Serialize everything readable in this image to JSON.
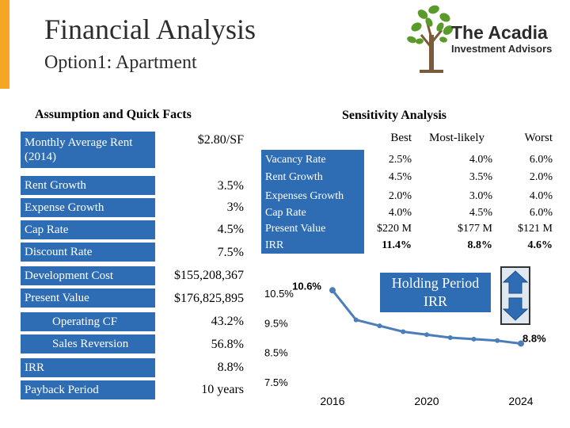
{
  "header": {
    "title": "Financial Analysis",
    "subtitle": "Option1: Apartment"
  },
  "logo": {
    "name": "The Acadia",
    "tagline": "Investment Advisors",
    "icon": "tree-icon"
  },
  "colors": {
    "accent": "#f5a623",
    "label_blue": "#2e6db3",
    "curve_blue": "#4a7ebb"
  },
  "assumptions": {
    "heading": "Assumption and Quick Facts",
    "rows": [
      {
        "label": "Monthly Average Rent (2014)",
        "value": "$2.80/SF"
      },
      {
        "label": "Rent Growth",
        "value": "3.5%"
      },
      {
        "label": "Expense Growth",
        "value": "3%"
      },
      {
        "label": "Cap Rate",
        "value": "4.5%"
      },
      {
        "label": "Discount Rate",
        "value": "7.5%"
      },
      {
        "label": "Development Cost",
        "value": "$155,208,367"
      },
      {
        "label": "Present Value",
        "value": "$176,825,895"
      },
      {
        "label": "Operating CF",
        "value": "43.2%"
      },
      {
        "label": "Sales Reversion",
        "value": "56.8%"
      },
      {
        "label": "IRR",
        "value": "8.8%"
      },
      {
        "label": "Payback Period",
        "value": "10 years"
      }
    ]
  },
  "sensitivity": {
    "heading": "Sensitivity Analysis",
    "columns": [
      "Best",
      "Most-likely",
      "Worst"
    ],
    "rows": [
      {
        "label": "Vacancy Rate",
        "values": [
          "2.5%",
          "4.0%",
          "6.0%"
        ]
      },
      {
        "label": "Rent Growth",
        "values": [
          "4.5%",
          "3.5%",
          "2.0%"
        ]
      },
      {
        "label": "Expenses Growth",
        "values": [
          "2.0%",
          "3.0%",
          "4.0%"
        ]
      },
      {
        "label": "Cap Rate",
        "values": [
          "4.0%",
          "4.5%",
          "6.0%"
        ]
      },
      {
        "label": "Present Value",
        "values": [
          "$220 M",
          "$177 M",
          "$121 M"
        ]
      },
      {
        "label": "IRR",
        "values": [
          "11.4%",
          "8.8%",
          "4.6%"
        ]
      }
    ]
  },
  "holding_period": {
    "label": "Holding Period IRR",
    "up_icon": "arrow-up-icon",
    "down_icon": "arrow-down-icon"
  },
  "chart_data": {
    "type": "line",
    "title": "Holding Period IRR",
    "x": [
      2016,
      2017,
      2018,
      2019,
      2020,
      2021,
      2022,
      2023,
      2024
    ],
    "y": [
      10.6,
      9.6,
      9.4,
      9.2,
      9.1,
      9.0,
      8.95,
      8.9,
      8.8
    ],
    "series_name": "IRR",
    "ytick_labels": [
      "10.5%",
      "9.5%",
      "8.5%",
      "7.5%"
    ],
    "yticks": [
      10.5,
      9.5,
      8.5,
      7.5
    ],
    "xtick_labels": [
      "2016",
      "2020",
      "2024"
    ],
    "xticks": [
      2016,
      2020,
      2024
    ],
    "ylim": [
      7.5,
      10.5
    ],
    "xlim": [
      2016,
      2024
    ],
    "data_labels": {
      "start": "10.6%",
      "end": "8.8%"
    },
    "xlabel": "",
    "ylabel": ""
  }
}
